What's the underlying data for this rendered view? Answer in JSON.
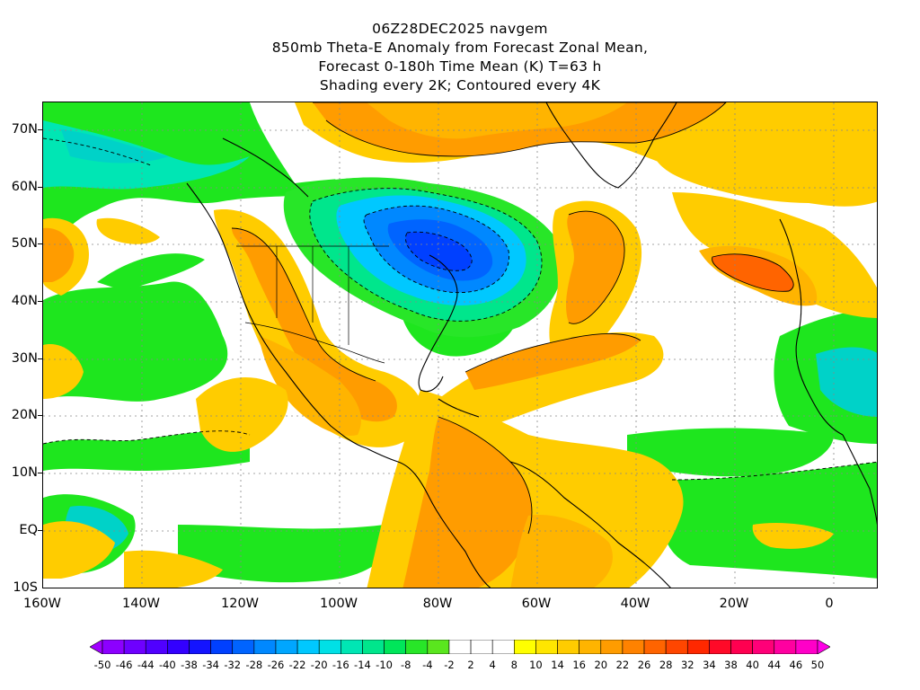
{
  "title": {
    "line1": "06Z28DEC2025 navgem",
    "line2": "850mb Theta-E Anomaly from Forecast Zonal Mean,",
    "line3": "Forecast 0-180h Time Mean (K) T=63 h",
    "line4": "Shading every 2K; Contoured every 4K"
  },
  "map": {
    "lat_labels": [
      "70N",
      "60N",
      "50N",
      "40N",
      "30N",
      "20N",
      "10N",
      "EQ",
      "10S"
    ],
    "lon_labels": [
      "160W",
      "140W",
      "120W",
      "100W",
      "80W",
      "60W",
      "40W",
      "20W",
      "0"
    ]
  },
  "colorbar": {
    "labels": [
      "-50",
      "-46",
      "-44",
      "-40",
      "-38",
      "-34",
      "-32",
      "-28",
      "-26",
      "-22",
      "-20",
      "-16",
      "-14",
      "-10",
      "-8",
      "-4",
      "-2",
      "2",
      "4",
      "8",
      "10",
      "14",
      "16",
      "20",
      "22",
      "26",
      "28",
      "32",
      "34",
      "38",
      "40",
      "44",
      "46",
      "50"
    ],
    "colors": [
      "#a000ff",
      "#8c00ff",
      "#6e00ff",
      "#5000ff",
      "#3300ff",
      "#1414ff",
      "#0040ff",
      "#0064ff",
      "#0088ff",
      "#00a6ff",
      "#00c8ff",
      "#00e0e6",
      "#00e6b4",
      "#00e68c",
      "#00e65a",
      "#28e628",
      "#5ae61e",
      "#ffffff",
      "#ffffff",
      "#ffffff",
      "#ffff00",
      "#ffe600",
      "#ffcc00",
      "#ffb400",
      "#ff9c00",
      "#ff8200",
      "#ff6400",
      "#ff4600",
      "#ff2800",
      "#ff0a28",
      "#ff0050",
      "#ff0078",
      "#ff00a0",
      "#ff00c8",
      "#ff00e6"
    ]
  }
}
